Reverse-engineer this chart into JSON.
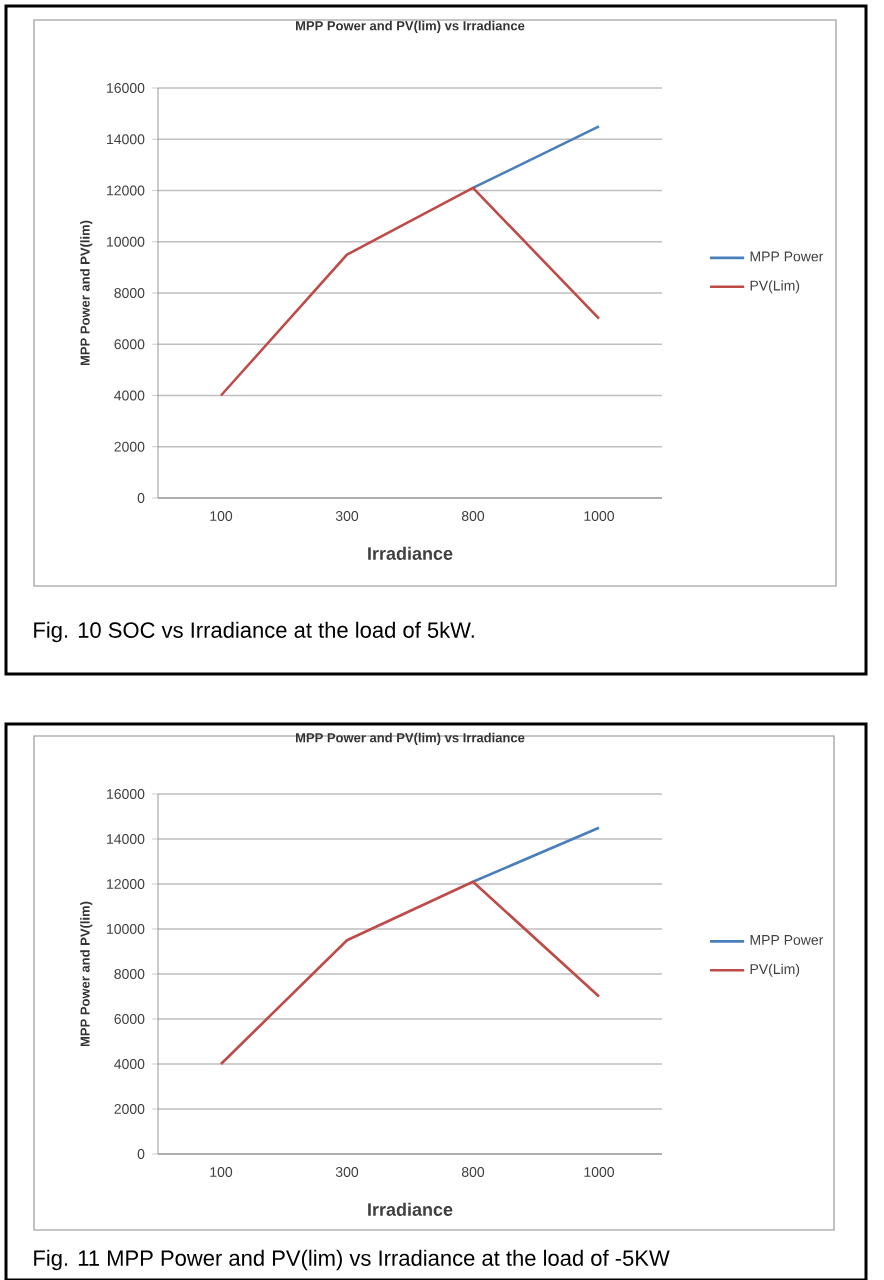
{
  "chart_data": [
    {
      "type": "line",
      "title": "MPP Power and PV(lim) vs Irradiance",
      "xlabel": "Irradiance",
      "ylabel": "MPP Power and PV(lim)",
      "categories": [
        "100",
        "300",
        "800",
        "1000"
      ],
      "series": [
        {
          "name": "MPP Power",
          "color": "#4a7ebb",
          "values": [
            null,
            null,
            12100,
            14500
          ]
        },
        {
          "name": "PV(Lim)",
          "color": "#be4b48",
          "values": [
            4000,
            9500,
            12100,
            7000
          ]
        }
      ],
      "ylim": [
        0,
        16000
      ],
      "yticks": [
        0,
        2000,
        4000,
        6000,
        8000,
        10000,
        12000,
        14000,
        16000
      ],
      "grid": "y",
      "legend": "right",
      "marker": "none",
      "line_style": "solid",
      "annotations": [
        "Fig. 10 SOC vs Irradiance at the load of 5kW."
      ]
    },
    {
      "type": "line",
      "title": "MPP Power and PV(lim) vs Irradiance",
      "xlabel": "Irradiance",
      "ylabel": "MPP Power and PV(lim)",
      "categories": [
        "100",
        "300",
        "800",
        "1000"
      ],
      "series": [
        {
          "name": "MPP Power",
          "color": "#4a7ebb",
          "values": [
            null,
            null,
            12100,
            14500
          ]
        },
        {
          "name": "PV(Lim)",
          "color": "#be4b48",
          "values": [
            4000,
            9500,
            12100,
            7000
          ]
        }
      ],
      "ylim": [
        0,
        16000
      ],
      "yticks": [
        0,
        2000,
        4000,
        6000,
        8000,
        10000,
        12000,
        14000,
        16000
      ],
      "grid": "y",
      "legend": "right",
      "marker": "none",
      "line_style": "solid",
      "annotations": [
        "Fig. 11 MPP Power and PV(lim) vs Irradiance at the load of -5KW"
      ]
    }
  ]
}
